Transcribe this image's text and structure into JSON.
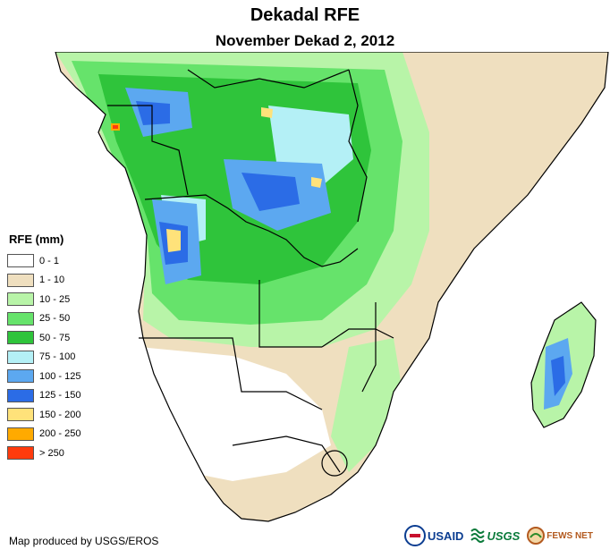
{
  "title": "Dekadal RFE",
  "subtitle": "November Dekad 2, 2012",
  "legend": {
    "title": "RFE (mm)",
    "items": [
      {
        "label": "0 - 1",
        "color": "#ffffff"
      },
      {
        "label": "1 - 10",
        "color": "#efdfbf"
      },
      {
        "label": "10 - 25",
        "color": "#b8f4a8"
      },
      {
        "label": "25 - 50",
        "color": "#66e36b"
      },
      {
        "label": "50 - 75",
        "color": "#2fc43b"
      },
      {
        "label": "75 - 100",
        "color": "#b4f0f6"
      },
      {
        "label": "100 - 125",
        "color": "#5ca8f0"
      },
      {
        "label": "125 - 150",
        "color": "#2b6ce6"
      },
      {
        "label": "150 - 200",
        "color": "#ffe27a"
      },
      {
        "label": "200 - 250",
        "color": "#ffaa00"
      },
      {
        "label": "> 250",
        "color": "#ff3b0d"
      }
    ]
  },
  "credit": "Map produced by USGS/EROS",
  "logos": {
    "usaid": "USAID",
    "usgs": "USGS",
    "fews": "FEWS NET"
  },
  "colors": {
    "border": "#000000",
    "bg": "#ffffff"
  }
}
